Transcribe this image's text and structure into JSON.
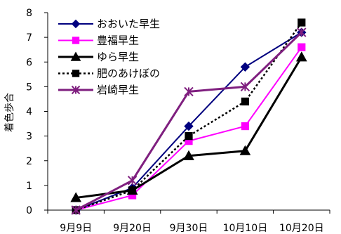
{
  "chart_data": {
    "type": "line",
    "title": "",
    "xlabel": "",
    "ylabel": "着色歩合",
    "categories": [
      "9月9日",
      "9月20日",
      "9月30日",
      "10月10日",
      "10月20日"
    ],
    "ylim": [
      0,
      8
    ],
    "yticks": [
      "0",
      "1",
      "2",
      "3",
      "4",
      "5",
      "6",
      "7",
      "8"
    ],
    "grid": false,
    "legend_position": "top-left",
    "series": [
      {
        "name": "おおいた早生",
        "values": [
          0.0,
          0.9,
          3.4,
          5.8,
          7.2
        ],
        "color": "#00007f",
        "marker": "diamond",
        "line": "solid"
      },
      {
        "name": "豊福早生",
        "values": [
          0.0,
          0.6,
          2.8,
          3.4,
          6.6
        ],
        "color": "#ff00ff",
        "marker": "square",
        "line": "solid"
      },
      {
        "name": "ゆら早生",
        "values": [
          0.5,
          0.8,
          2.2,
          2.4,
          6.2
        ],
        "color": "#000000",
        "marker": "triangle",
        "line": "solid"
      },
      {
        "name": "肥のあけぼの",
        "values": [
          0.0,
          0.8,
          3.0,
          4.4,
          7.6
        ],
        "color": "#000000",
        "marker": "square",
        "line": "dotted"
      },
      {
        "name": "岩崎早生",
        "values": [
          0.0,
          1.2,
          4.8,
          5.0,
          7.2
        ],
        "color": "#7f1f7f",
        "marker": "asterisk",
        "line": "solid"
      }
    ]
  }
}
